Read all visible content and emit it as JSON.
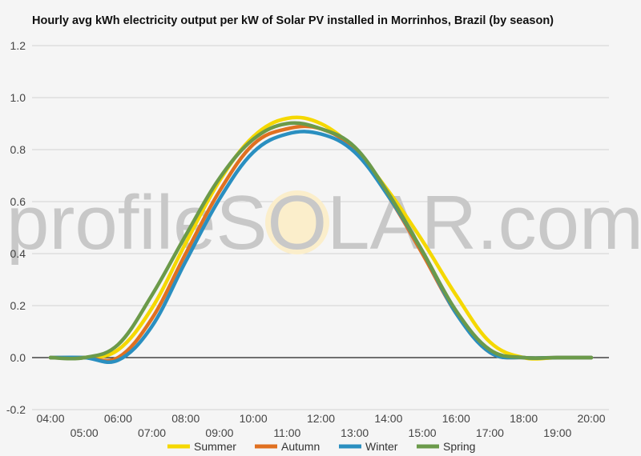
{
  "chart_data": {
    "type": "line",
    "title": "Hourly avg kWh electricity output per kW of Solar PV installed in Morrinhos, Brazil (by season)",
    "xlabel": "",
    "ylabel": "",
    "x": [
      "04:00",
      "05:00",
      "06:00",
      "07:00",
      "08:00",
      "09:00",
      "10:00",
      "11:00",
      "12:00",
      "13:00",
      "14:00",
      "15:00",
      "16:00",
      "17:00",
      "18:00",
      "19:00",
      "20:00"
    ],
    "ylim": [
      -0.2,
      1.2
    ],
    "yticks": [
      "-0.2",
      "0.0",
      "0.2",
      "0.4",
      "0.6",
      "0.8",
      "1.0",
      "1.2"
    ],
    "grid": true,
    "legend_position": "bottom",
    "series": [
      {
        "name": "Summer",
        "color": "#f5d800",
        "values": [
          0.0,
          0.0,
          0.03,
          0.19,
          0.44,
          0.68,
          0.85,
          0.92,
          0.9,
          0.8,
          0.64,
          0.45,
          0.24,
          0.06,
          0.0,
          0.0,
          0.0
        ]
      },
      {
        "name": "Autumn",
        "color": "#e07020",
        "values": [
          0.0,
          0.0,
          0.0,
          0.15,
          0.4,
          0.64,
          0.82,
          0.88,
          0.88,
          0.8,
          0.62,
          0.4,
          0.17,
          0.02,
          0.0,
          0.0,
          0.0
        ]
      },
      {
        "name": "Winter",
        "color": "#2a8fc0",
        "values": [
          0.0,
          0.0,
          -0.01,
          0.12,
          0.37,
          0.61,
          0.79,
          0.86,
          0.86,
          0.79,
          0.62,
          0.41,
          0.17,
          0.02,
          0.0,
          0.0,
          0.0
        ]
      },
      {
        "name": "Spring",
        "color": "#6b9a4a",
        "values": [
          0.0,
          0.0,
          0.05,
          0.24,
          0.47,
          0.69,
          0.84,
          0.9,
          0.88,
          0.81,
          0.63,
          0.41,
          0.18,
          0.03,
          0.0,
          0.0,
          0.0
        ]
      }
    ]
  },
  "watermark": {
    "text_left": "profile",
    "text_s": "S",
    "text_o": "O",
    "text_right": "LAR.com",
    "sun_color": "#fbeecb"
  }
}
